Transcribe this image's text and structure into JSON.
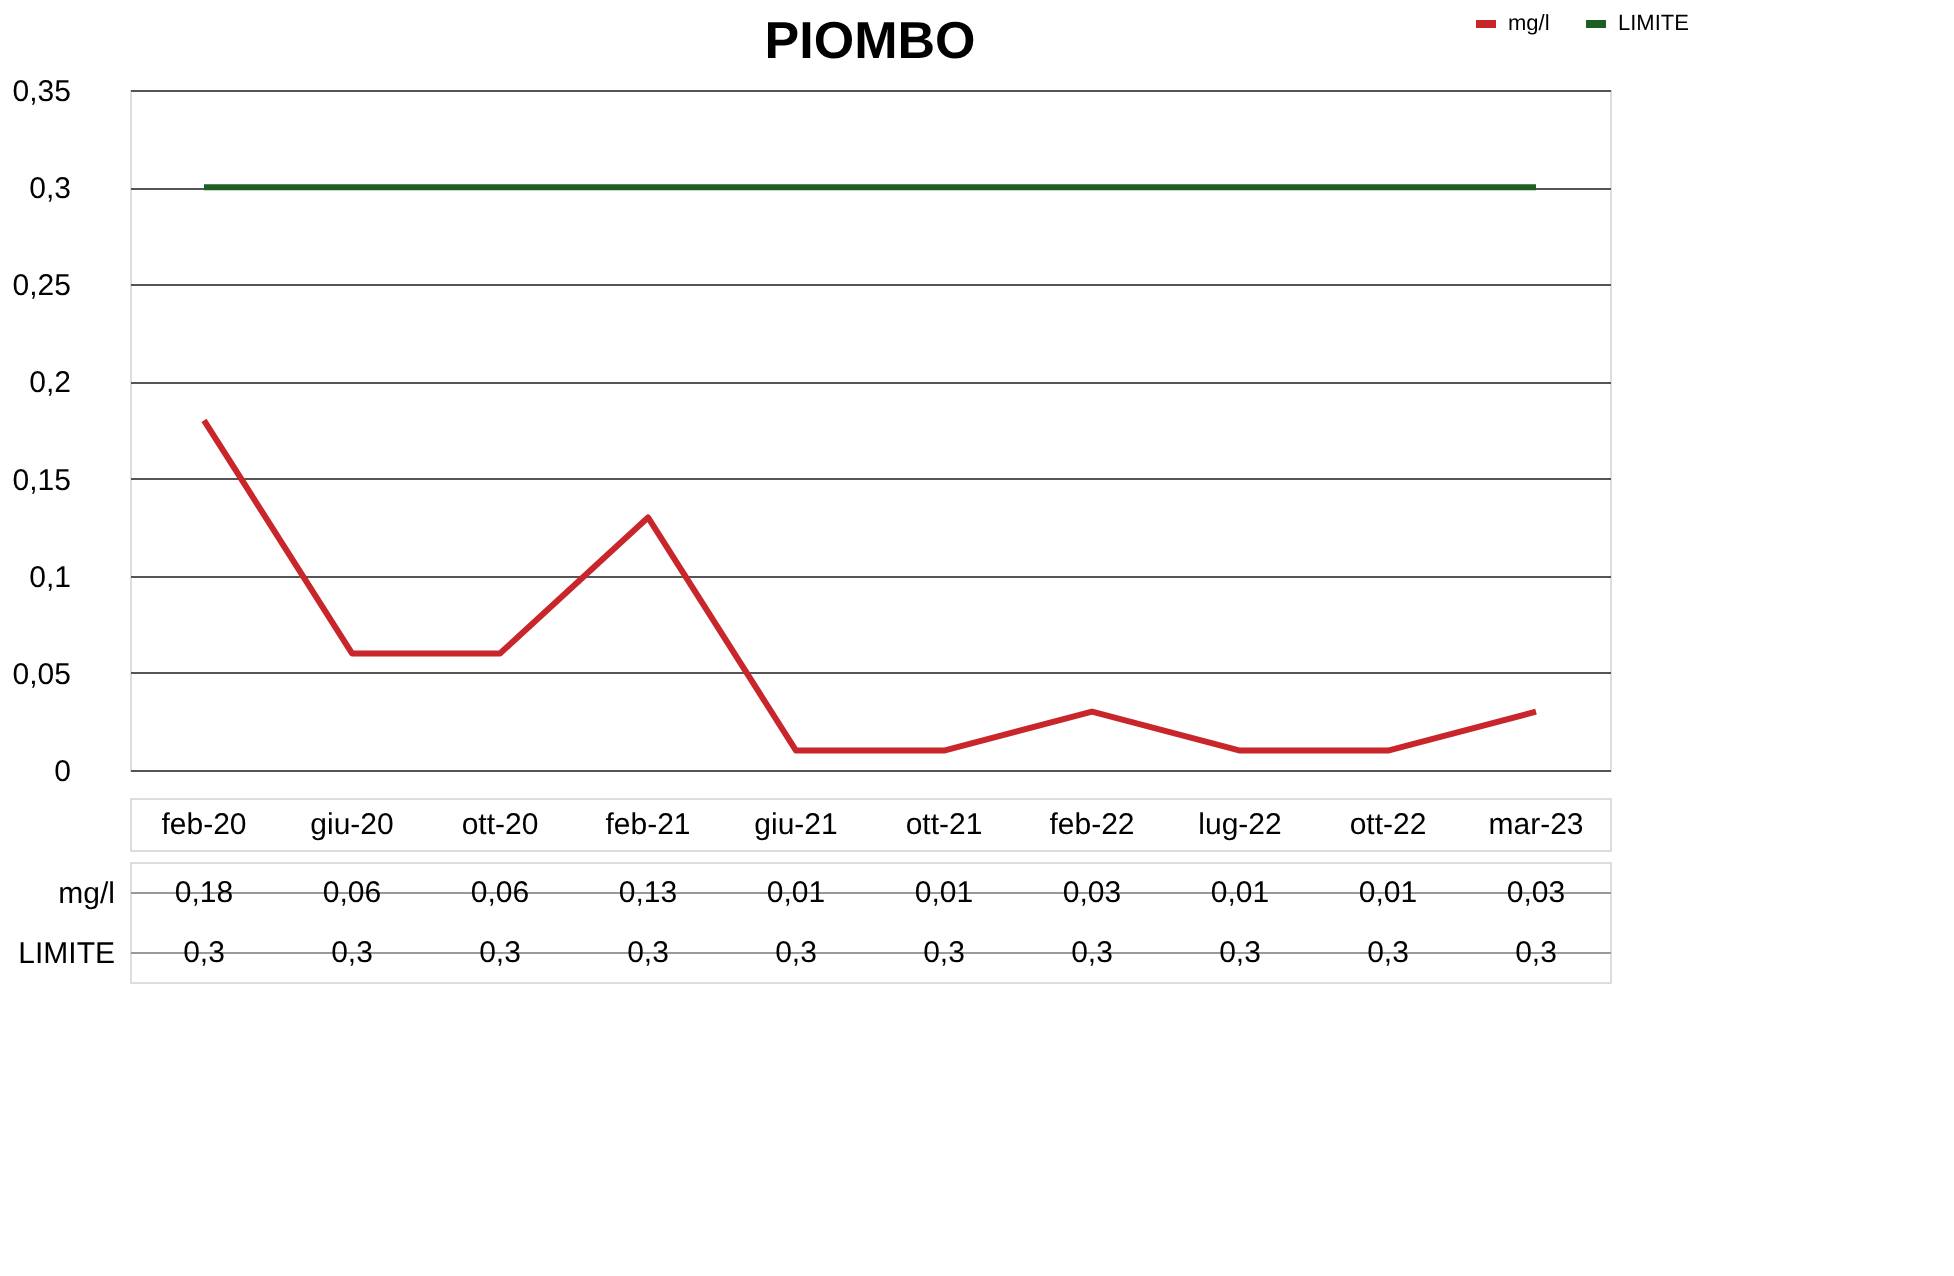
{
  "chart_data": {
    "type": "line",
    "title": "PIOMBO",
    "categories": [
      "feb-20",
      "giu-20",
      "ott-20",
      "feb-21",
      "giu-21",
      "ott-21",
      "feb-22",
      "lug-22",
      "ott-22",
      "mar-23"
    ],
    "series": [
      {
        "name": "mg/l",
        "color": "#c8262b",
        "values": [
          0.18,
          0.06,
          0.06,
          0.13,
          0.01,
          0.01,
          0.03,
          0.01,
          0.01,
          0.03
        ],
        "value_labels": [
          "0,18",
          "0,06",
          "0,06",
          "0,13",
          "0,01",
          "0,01",
          "0,03",
          "0,01",
          "0,01",
          "0,03"
        ]
      },
      {
        "name": "LIMITE",
        "color": "#1d5e22",
        "values": [
          0.3,
          0.3,
          0.3,
          0.3,
          0.3,
          0.3,
          0.3,
          0.3,
          0.3,
          0.3
        ],
        "value_labels": [
          "0,3",
          "0,3",
          "0,3",
          "0,3",
          "0,3",
          "0,3",
          "0,3",
          "0,3",
          "0,3",
          "0,3"
        ]
      }
    ],
    "ylim": [
      0,
      0.35
    ],
    "yticks": [
      {
        "value": 0,
        "label": "0"
      },
      {
        "value": 0.05,
        "label": "0,05"
      },
      {
        "value": 0.1,
        "label": "0,1"
      },
      {
        "value": 0.15,
        "label": "0,15"
      },
      {
        "value": 0.2,
        "label": "0,2"
      },
      {
        "value": 0.25,
        "label": "0,25"
      },
      {
        "value": 0.3,
        "label": "0,3"
      },
      {
        "value": 0.35,
        "label": "0,35"
      }
    ],
    "grid": "y",
    "legend": "top right",
    "marker": "none",
    "line_style": "solid"
  }
}
